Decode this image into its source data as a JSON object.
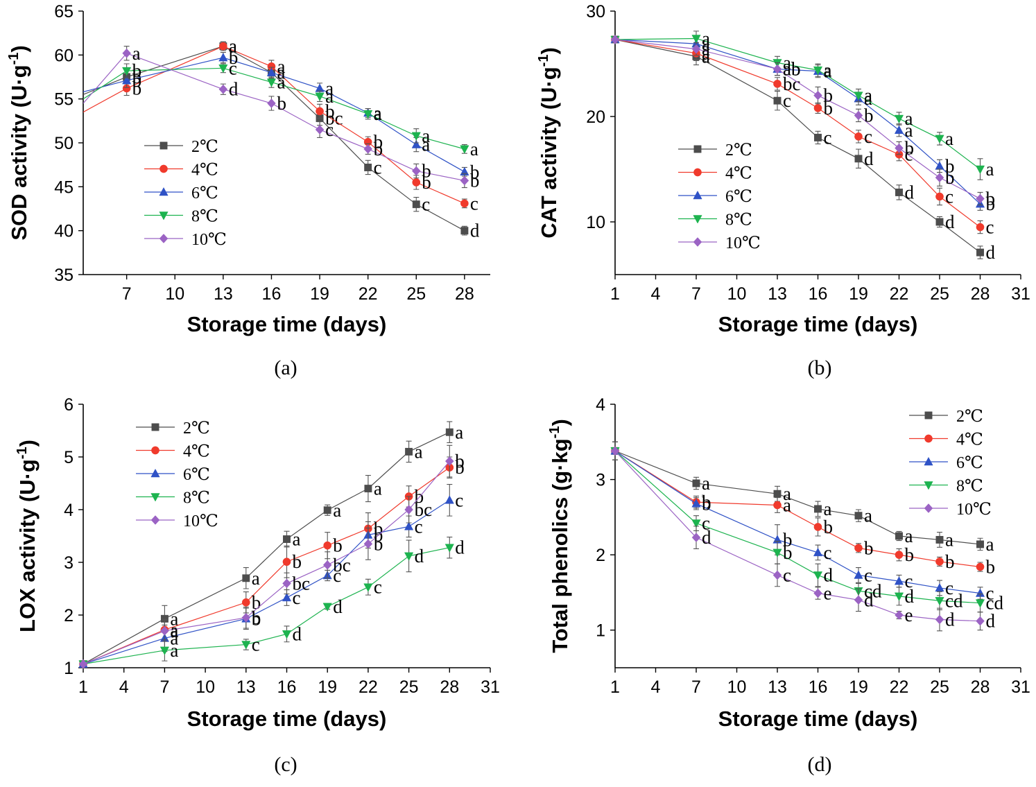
{
  "colors": {
    "2℃": "#4d4d4d",
    "4℃": "#f03a2c",
    "6℃": "#2f52c6",
    "8℃": "#1db34f",
    "10℃": "#9b63c4"
  },
  "markers": {
    "2℃": "square",
    "4℃": "circle",
    "6℃": "triangle-up",
    "8℃": "triangle-down",
    "10℃": "diamond"
  },
  "chart_data": [
    {
      "id": "a",
      "type": "line",
      "panel_label": "(a)",
      "xlabel": "Storage time (days)",
      "ylabel": "SOD activity (U·g",
      "ylabel_sup": "-1",
      "ylabel_close": ")",
      "xlim": [
        4.3,
        29.6
      ],
      "ylim": [
        35,
        65
      ],
      "xticks": [
        7,
        10,
        13,
        16,
        19,
        22,
        25,
        28
      ],
      "yticks": [
        35,
        40,
        45,
        50,
        55,
        60,
        65
      ],
      "legend_position": "center-left",
      "start_x": 4.3,
      "series": [
        {
          "name": "2℃",
          "start": 55.5,
          "x": [
            7,
            13,
            16,
            19,
            22,
            25,
            28
          ],
          "y": [
            57.5,
            61.0,
            58.0,
            52.8,
            47.2,
            43.0,
            40.0
          ],
          "err": [
            0.8,
            0.5,
            0.7,
            0.8,
            0.8,
            0.8,
            0.5
          ],
          "letters": [
            "b",
            "a",
            "a",
            "bc",
            "c",
            "c",
            "d"
          ]
        },
        {
          "name": "4℃",
          "start": 53.5,
          "x": [
            7,
            13,
            16,
            19,
            22,
            25,
            28
          ],
          "y": [
            56.2,
            61.0,
            58.7,
            53.6,
            50.1,
            45.5,
            43.1
          ],
          "err": [
            0.8,
            0.5,
            0.7,
            0.8,
            0.6,
            0.8,
            0.5
          ],
          "letters": [
            "b",
            "a",
            "a",
            "b",
            "b",
            "b",
            "c"
          ]
        },
        {
          "name": "6℃",
          "start": 55.8,
          "x": [
            7,
            13,
            16,
            19,
            22,
            25,
            28
          ],
          "y": [
            57.1,
            59.7,
            58.0,
            56.2,
            53.4,
            49.8,
            46.7
          ],
          "err": [
            0.8,
            0.6,
            0.6,
            0.6,
            0.5,
            0.8,
            0.5
          ],
          "letters": [
            "b",
            "b",
            "a",
            "a",
            "a",
            "a",
            "b"
          ]
        },
        {
          "name": "8℃",
          "start": 55.0,
          "x": [
            7,
            13,
            16,
            19,
            22,
            25,
            28
          ],
          "y": [
            58.2,
            58.5,
            56.9,
            55.3,
            53.3,
            50.8,
            49.3
          ],
          "err": [
            0.8,
            0.5,
            0.6,
            0.6,
            0.6,
            0.8,
            0.5
          ],
          "letters": [
            "b",
            "c",
            "a",
            "a",
            "a",
            "a",
            "a"
          ]
        },
        {
          "name": "10℃",
          "start": 54.5,
          "x": [
            7,
            13,
            16,
            19,
            22,
            25,
            28
          ],
          "y": [
            60.2,
            56.1,
            54.5,
            51.5,
            49.3,
            46.8,
            45.7
          ],
          "err": [
            0.8,
            0.6,
            0.8,
            0.9,
            0.6,
            0.8,
            0.8
          ],
          "letters": [
            "a",
            "d",
            "b",
            "c",
            "b",
            "b",
            "b"
          ]
        }
      ]
    },
    {
      "id": "b",
      "type": "line",
      "panel_label": "(b)",
      "xlabel": "Storage time (days)",
      "ylabel": "CAT activity (U·g",
      "ylabel_sup": "-1",
      "ylabel_close": ")",
      "xlim": [
        1,
        31
      ],
      "ylim": [
        5,
        30
      ],
      "xticks": [
        1,
        4,
        7,
        10,
        13,
        16,
        19,
        22,
        25,
        28,
        31
      ],
      "yticks": [
        10,
        20,
        30
      ],
      "legend_position": "center-left",
      "series": [
        {
          "name": "2℃",
          "x": [
            1,
            7,
            13,
            16,
            19,
            22,
            25,
            28
          ],
          "y": [
            27.3,
            25.7,
            21.5,
            18.0,
            16.0,
            12.8,
            10.0,
            7.1
          ],
          "err": [
            0.3,
            0.8,
            0.9,
            0.6,
            0.9,
            0.7,
            0.5,
            0.6
          ],
          "letters": [
            "",
            "a",
            "c",
            "c",
            "d",
            "d",
            "d",
            "d"
          ]
        },
        {
          "name": "4℃",
          "x": [
            1,
            7,
            13,
            16,
            19,
            22,
            25,
            28
          ],
          "y": [
            27.3,
            26.0,
            23.1,
            20.8,
            18.1,
            16.4,
            12.4,
            9.5
          ],
          "err": [
            0.3,
            0.7,
            0.6,
            0.5,
            0.6,
            0.6,
            0.8,
            0.6
          ],
          "letters": [
            "",
            "a",
            "bc",
            "b",
            "c",
            "c",
            "c",
            "c"
          ]
        },
        {
          "name": "6℃",
          "x": [
            1,
            7,
            13,
            16,
            19,
            22,
            25,
            28
          ],
          "y": [
            27.3,
            26.9,
            24.5,
            24.3,
            21.7,
            18.7,
            15.3,
            11.7
          ],
          "err": [
            0.3,
            0.6,
            0.6,
            0.6,
            0.6,
            0.6,
            0.6,
            0.6
          ],
          "letters": [
            "",
            "a",
            "ab",
            "a",
            "a",
            "a",
            "b",
            "b"
          ]
        },
        {
          "name": "8℃",
          "x": [
            1,
            7,
            13,
            16,
            19,
            22,
            25,
            28
          ],
          "y": [
            27.3,
            27.4,
            25.1,
            24.4,
            22.0,
            19.8,
            17.9,
            15.0
          ],
          "err": [
            0.3,
            0.7,
            0.6,
            0.6,
            0.6,
            0.6,
            0.6,
            1.0
          ],
          "letters": [
            "",
            "a",
            "a",
            "a",
            "a",
            "a",
            "a",
            "a"
          ]
        },
        {
          "name": "10℃",
          "x": [
            1,
            7,
            13,
            16,
            19,
            22,
            25,
            28
          ],
          "y": [
            27.3,
            26.4,
            24.5,
            22.0,
            20.1,
            17.0,
            14.2,
            12.2
          ],
          "err": [
            0.3,
            0.6,
            0.6,
            0.8,
            0.6,
            0.6,
            0.8,
            0.6
          ],
          "letters": [
            "",
            "a",
            "ab",
            "b",
            "b",
            "b",
            "b",
            "b"
          ]
        }
      ]
    },
    {
      "id": "c",
      "type": "line",
      "panel_label": "(c)",
      "xlabel": "Storage time (days)",
      "ylabel": "LOX activity (U·g",
      "ylabel_sup": "-1",
      "ylabel_close": ")",
      "xlim": [
        1,
        31
      ],
      "ylim": [
        1,
        6
      ],
      "xticks": [
        1,
        4,
        7,
        10,
        13,
        16,
        19,
        22,
        25,
        28,
        31
      ],
      "yticks": [
        1,
        2,
        3,
        4,
        5,
        6
      ],
      "legend_position": "top-left",
      "series": [
        {
          "name": "2℃",
          "x": [
            1,
            7,
            13,
            16,
            19,
            22,
            25,
            28
          ],
          "y": [
            1.07,
            1.93,
            2.7,
            3.44,
            3.99,
            4.4,
            5.1,
            5.47
          ],
          "err": [
            0.03,
            0.25,
            0.2,
            0.15,
            0.1,
            0.25,
            0.2,
            0.2
          ],
          "letters": [
            "",
            "a",
            "a",
            "a",
            "a",
            "a",
            "a",
            "a"
          ]
        },
        {
          "name": "4℃",
          "x": [
            1,
            7,
            13,
            16,
            19,
            22,
            25,
            28
          ],
          "y": [
            1.07,
            1.72,
            2.24,
            3.01,
            3.32,
            3.64,
            4.25,
            4.8
          ],
          "err": [
            0.03,
            0.2,
            0.2,
            0.3,
            0.25,
            0.3,
            0.2,
            0.2
          ],
          "letters": [
            "",
            "a",
            "b",
            "b",
            "b",
            "b",
            "b",
            "b"
          ]
        },
        {
          "name": "6℃",
          "x": [
            1,
            7,
            13,
            16,
            19,
            22,
            25,
            28
          ],
          "y": [
            1.07,
            1.56,
            1.93,
            2.33,
            2.75,
            3.52,
            3.68,
            4.18
          ],
          "err": [
            0.03,
            0.25,
            0.2,
            0.15,
            0.1,
            0.25,
            0.2,
            0.3
          ],
          "letters": [
            "",
            "a",
            "b",
            "c",
            "c",
            "b",
            "c",
            "c"
          ]
        },
        {
          "name": "8℃",
          "x": [
            1,
            7,
            13,
            16,
            19,
            22,
            25,
            28
          ],
          "y": [
            1.07,
            1.33,
            1.44,
            1.64,
            2.16,
            2.53,
            3.12,
            3.28
          ],
          "err": [
            0.03,
            0.2,
            0.1,
            0.15,
            0.05,
            0.15,
            0.3,
            0.2
          ],
          "letters": [
            "",
            "a",
            "c",
            "d",
            "d",
            "c",
            "d",
            "d"
          ]
        },
        {
          "name": "10℃",
          "x": [
            1,
            7,
            13,
            16,
            19,
            22,
            25,
            28
          ],
          "y": [
            1.07,
            1.7,
            1.95,
            2.6,
            2.95,
            3.35,
            4.0,
            4.92
          ],
          "err": [
            0.03,
            0.2,
            0.2,
            0.2,
            0.25,
            0.3,
            0.25,
            0.3
          ],
          "letters": [
            "",
            "a",
            "b",
            "bc",
            "bc",
            "b",
            "bc",
            "b"
          ]
        }
      ]
    },
    {
      "id": "d",
      "type": "line",
      "panel_label": "(d)",
      "xlabel": "Storage time (days)",
      "ylabel": "Total phenolics (g·kg",
      "ylabel_sup": "-1",
      "ylabel_close": ")",
      "xlim": [
        1,
        31
      ],
      "ylim": [
        0.5,
        4
      ],
      "xticks": [
        1,
        4,
        7,
        10,
        13,
        16,
        19,
        22,
        25,
        28,
        31
      ],
      "yticks": [
        1,
        2,
        3,
        4
      ],
      "legend_position": "top-right",
      "series": [
        {
          "name": "2℃",
          "x": [
            1,
            7,
            13,
            16,
            19,
            22,
            25,
            28
          ],
          "y": [
            3.38,
            2.95,
            2.81,
            2.61,
            2.52,
            2.25,
            2.2,
            2.14
          ],
          "err": [
            0.12,
            0.08,
            0.1,
            0.1,
            0.08,
            0.06,
            0.1,
            0.08
          ],
          "letters": [
            "",
            "a",
            "a",
            "a",
            "a",
            "a",
            "a",
            "a"
          ]
        },
        {
          "name": "4℃",
          "x": [
            1,
            7,
            13,
            16,
            19,
            22,
            25,
            28
          ],
          "y": [
            3.38,
            2.7,
            2.66,
            2.37,
            2.09,
            2.0,
            1.91,
            1.84
          ],
          "err": [
            0.12,
            0.08,
            0.1,
            0.12,
            0.06,
            0.08,
            0.06,
            0.06
          ],
          "letters": [
            "",
            "b",
            "a",
            "b",
            "b",
            "b",
            "b",
            "b"
          ]
        },
        {
          "name": "6℃",
          "x": [
            1,
            7,
            13,
            16,
            19,
            22,
            25,
            28
          ],
          "y": [
            3.38,
            2.68,
            2.2,
            2.03,
            1.73,
            1.65,
            1.56,
            1.49
          ],
          "err": [
            0.12,
            0.08,
            0.2,
            0.1,
            0.1,
            0.08,
            0.1,
            0.08
          ],
          "letters": [
            "",
            "b",
            "b",
            "c",
            "c",
            "c",
            "c",
            "c"
          ]
        },
        {
          "name": "8℃",
          "x": [
            1,
            7,
            13,
            16,
            19,
            22,
            25,
            28
          ],
          "y": [
            3.38,
            2.42,
            2.03,
            1.73,
            1.52,
            1.45,
            1.39,
            1.36
          ],
          "err": [
            0.12,
            0.1,
            0.15,
            0.15,
            0.1,
            0.12,
            0.12,
            0.12
          ],
          "letters": [
            "",
            "c",
            "b",
            "d",
            "cd",
            "d",
            "cd",
            "cd"
          ]
        },
        {
          "name": "10℃",
          "x": [
            1,
            7,
            13,
            16,
            19,
            22,
            25,
            28
          ],
          "y": [
            3.38,
            2.23,
            1.73,
            1.49,
            1.4,
            1.2,
            1.14,
            1.12
          ],
          "err": [
            0.12,
            0.15,
            0.15,
            0.08,
            0.15,
            0.05,
            0.15,
            0.12
          ],
          "letters": [
            "",
            "d",
            "c",
            "e",
            "d",
            "e",
            "d",
            "d"
          ]
        }
      ]
    }
  ]
}
